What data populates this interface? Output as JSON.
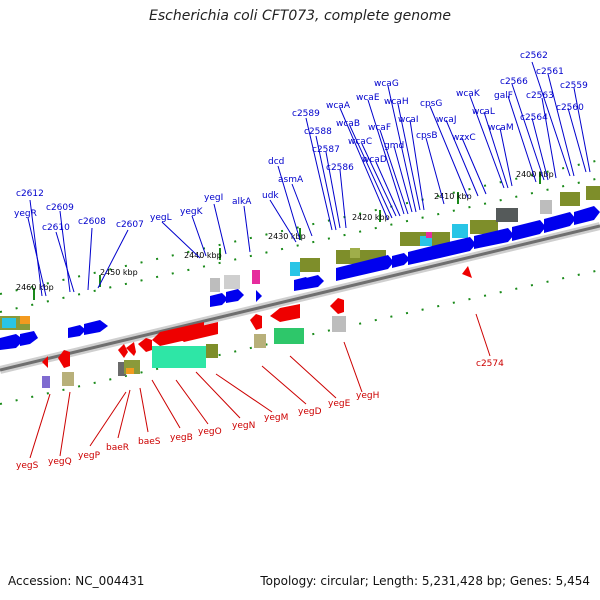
{
  "header": {
    "title": "Escherichia coli CFT073, complete genome"
  },
  "footer": {
    "accession": "Accession: NC_004431",
    "summary": "Topology: circular; Length: 5,231,428 bp; Genes: 5,454"
  },
  "colors": {
    "forward": "#0000ff",
    "reverse": "#ff0000",
    "backbone": "#777777"
  },
  "ticks": [
    "2400 kbp",
    "2410 kbp",
    "2420 kbp",
    "2430 kbp",
    "2440 kbp",
    "2450 kbp",
    "2460 kbp"
  ],
  "forward_genes": [
    "c2612",
    "yegR",
    "c2609",
    "c2610",
    "c2608",
    "c2607",
    "yegL",
    "yegK",
    "yegI",
    "alkA",
    "udk",
    "dcd",
    "asmA",
    "c2589",
    "c2588",
    "c2587",
    "c2586",
    "wcaA",
    "wcaB",
    "wcaC",
    "wcaD",
    "wcaE",
    "wcaF",
    "wcaG",
    "wcaH",
    "wcaI",
    "gmd",
    "cpsG",
    "cpsB",
    "wcaJ",
    "wzxC",
    "wcaK",
    "wcaL",
    "wcaM",
    "c2566",
    "galF",
    "c2564",
    "c2563",
    "c2562",
    "c2561",
    "c2560",
    "c2559"
  ],
  "reverse_genes": [
    "yegS",
    "yegQ",
    "yegP",
    "baeR",
    "baeS",
    "yegB",
    "yegO",
    "yegN",
    "yegM",
    "yegD",
    "yegE",
    "yegH",
    "c2574"
  ]
}
